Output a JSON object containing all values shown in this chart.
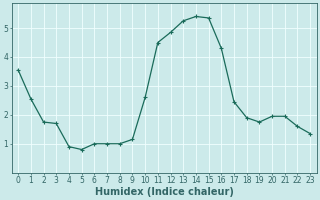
{
  "x": [
    0,
    1,
    2,
    3,
    4,
    5,
    6,
    7,
    8,
    9,
    10,
    11,
    12,
    13,
    14,
    15,
    16,
    17,
    18,
    19,
    20,
    21,
    22,
    23
  ],
  "y": [
    3.55,
    2.55,
    1.75,
    1.7,
    0.9,
    0.8,
    1.0,
    1.0,
    1.0,
    1.15,
    2.6,
    4.5,
    4.85,
    5.25,
    5.4,
    5.35,
    4.3,
    2.45,
    1.9,
    1.75,
    1.95,
    1.95,
    1.6,
    1.35
  ],
  "line_color": "#1a6b5a",
  "marker": "+",
  "marker_size": 3,
  "marker_linewidth": 0.8,
  "line_width": 0.9,
  "xlabel": "Humidex (Indice chaleur)",
  "xlim": [
    -0.5,
    23.5
  ],
  "ylim": [
    0.0,
    5.85
  ],
  "yticks": [
    1,
    2,
    3,
    4,
    5
  ],
  "xticks": [
    0,
    1,
    2,
    3,
    4,
    5,
    6,
    7,
    8,
    9,
    10,
    11,
    12,
    13,
    14,
    15,
    16,
    17,
    18,
    19,
    20,
    21,
    22,
    23
  ],
  "bg_color": "#cceaea",
  "grid_color": "#f0ffff",
  "spine_color": "#336666",
  "tick_color": "#336666",
  "tick_label_fontsize": 5.5,
  "xlabel_fontsize": 7.0,
  "xlabel_color": "#336666",
  "fig_width": 3.2,
  "fig_height": 2.0,
  "dpi": 100
}
